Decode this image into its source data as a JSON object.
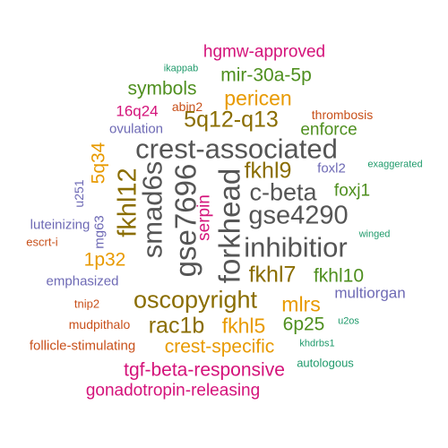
{
  "palette": {
    "gray": "#555555",
    "olive": "#8a6d00",
    "green": "#4f8f1f",
    "magenta": "#d4137a",
    "orange": "#e89a00",
    "rust": "#c8501a",
    "purple": "#6e6ab5",
    "teal": "#1f9a6b"
  },
  "words": [
    {
      "text": "hgmw-approved",
      "color": "magenta"
    },
    {
      "text": "ikappab",
      "color": "teal"
    },
    {
      "text": "mir-30a-5p",
      "color": "green"
    },
    {
      "text": "symbols",
      "color": "green"
    },
    {
      "text": "pericen",
      "color": "orange"
    },
    {
      "text": "abin2",
      "color": "rust"
    },
    {
      "text": "16q24",
      "color": "magenta"
    },
    {
      "text": "thrombosis",
      "color": "rust"
    },
    {
      "text": "5q12-q13",
      "color": "olive"
    },
    {
      "text": "ovulation",
      "color": "purple"
    },
    {
      "text": "enforce",
      "color": "green"
    },
    {
      "text": "crest-associated",
      "color": "gray"
    },
    {
      "text": "5q34",
      "color": "orange"
    },
    {
      "text": "fkhl12",
      "color": "olive"
    },
    {
      "text": "smad6s",
      "color": "gray"
    },
    {
      "text": "gse7696",
      "color": "gray"
    },
    {
      "text": "forkhead",
      "color": "gray"
    },
    {
      "text": "fkhl9",
      "color": "olive"
    },
    {
      "text": "foxl2",
      "color": "purple"
    },
    {
      "text": "exaggerated",
      "color": "teal"
    },
    {
      "text": "c-beta",
      "color": "gray"
    },
    {
      "text": "u251",
      "color": "purple"
    },
    {
      "text": "foxj1",
      "color": "green"
    },
    {
      "text": "gse4290",
      "color": "gray"
    },
    {
      "text": "serpin",
      "color": "magenta"
    },
    {
      "text": "luteinizing",
      "color": "purple"
    },
    {
      "text": "mg63",
      "color": "purple"
    },
    {
      "text": "winged",
      "color": "teal"
    },
    {
      "text": "inhibitior",
      "color": "gray"
    },
    {
      "text": "escrt-i",
      "color": "rust"
    },
    {
      "text": "1p32",
      "color": "orange"
    },
    {
      "text": "fkhl7",
      "color": "olive"
    },
    {
      "text": "fkhl10",
      "color": "green"
    },
    {
      "text": "emphasized",
      "color": "purple"
    },
    {
      "text": "oscopyright",
      "color": "olive"
    },
    {
      "text": "mlrs",
      "color": "orange"
    },
    {
      "text": "multiorgan",
      "color": "purple"
    },
    {
      "text": "tnip2",
      "color": "rust"
    },
    {
      "text": "mudpithalo",
      "color": "rust"
    },
    {
      "text": "rac1b",
      "color": "olive"
    },
    {
      "text": "fkhl5",
      "color": "orange"
    },
    {
      "text": "6p25",
      "color": "green"
    },
    {
      "text": "u2os",
      "color": "teal"
    },
    {
      "text": "follicle-stimulating",
      "color": "rust"
    },
    {
      "text": "crest-specific",
      "color": "orange"
    },
    {
      "text": "khdrbs1",
      "color": "teal"
    },
    {
      "text": "tgf-beta-responsive",
      "color": "magenta"
    },
    {
      "text": "autologous",
      "color": "teal"
    },
    {
      "text": "gonadotropin-releasing",
      "color": "magenta"
    }
  ]
}
